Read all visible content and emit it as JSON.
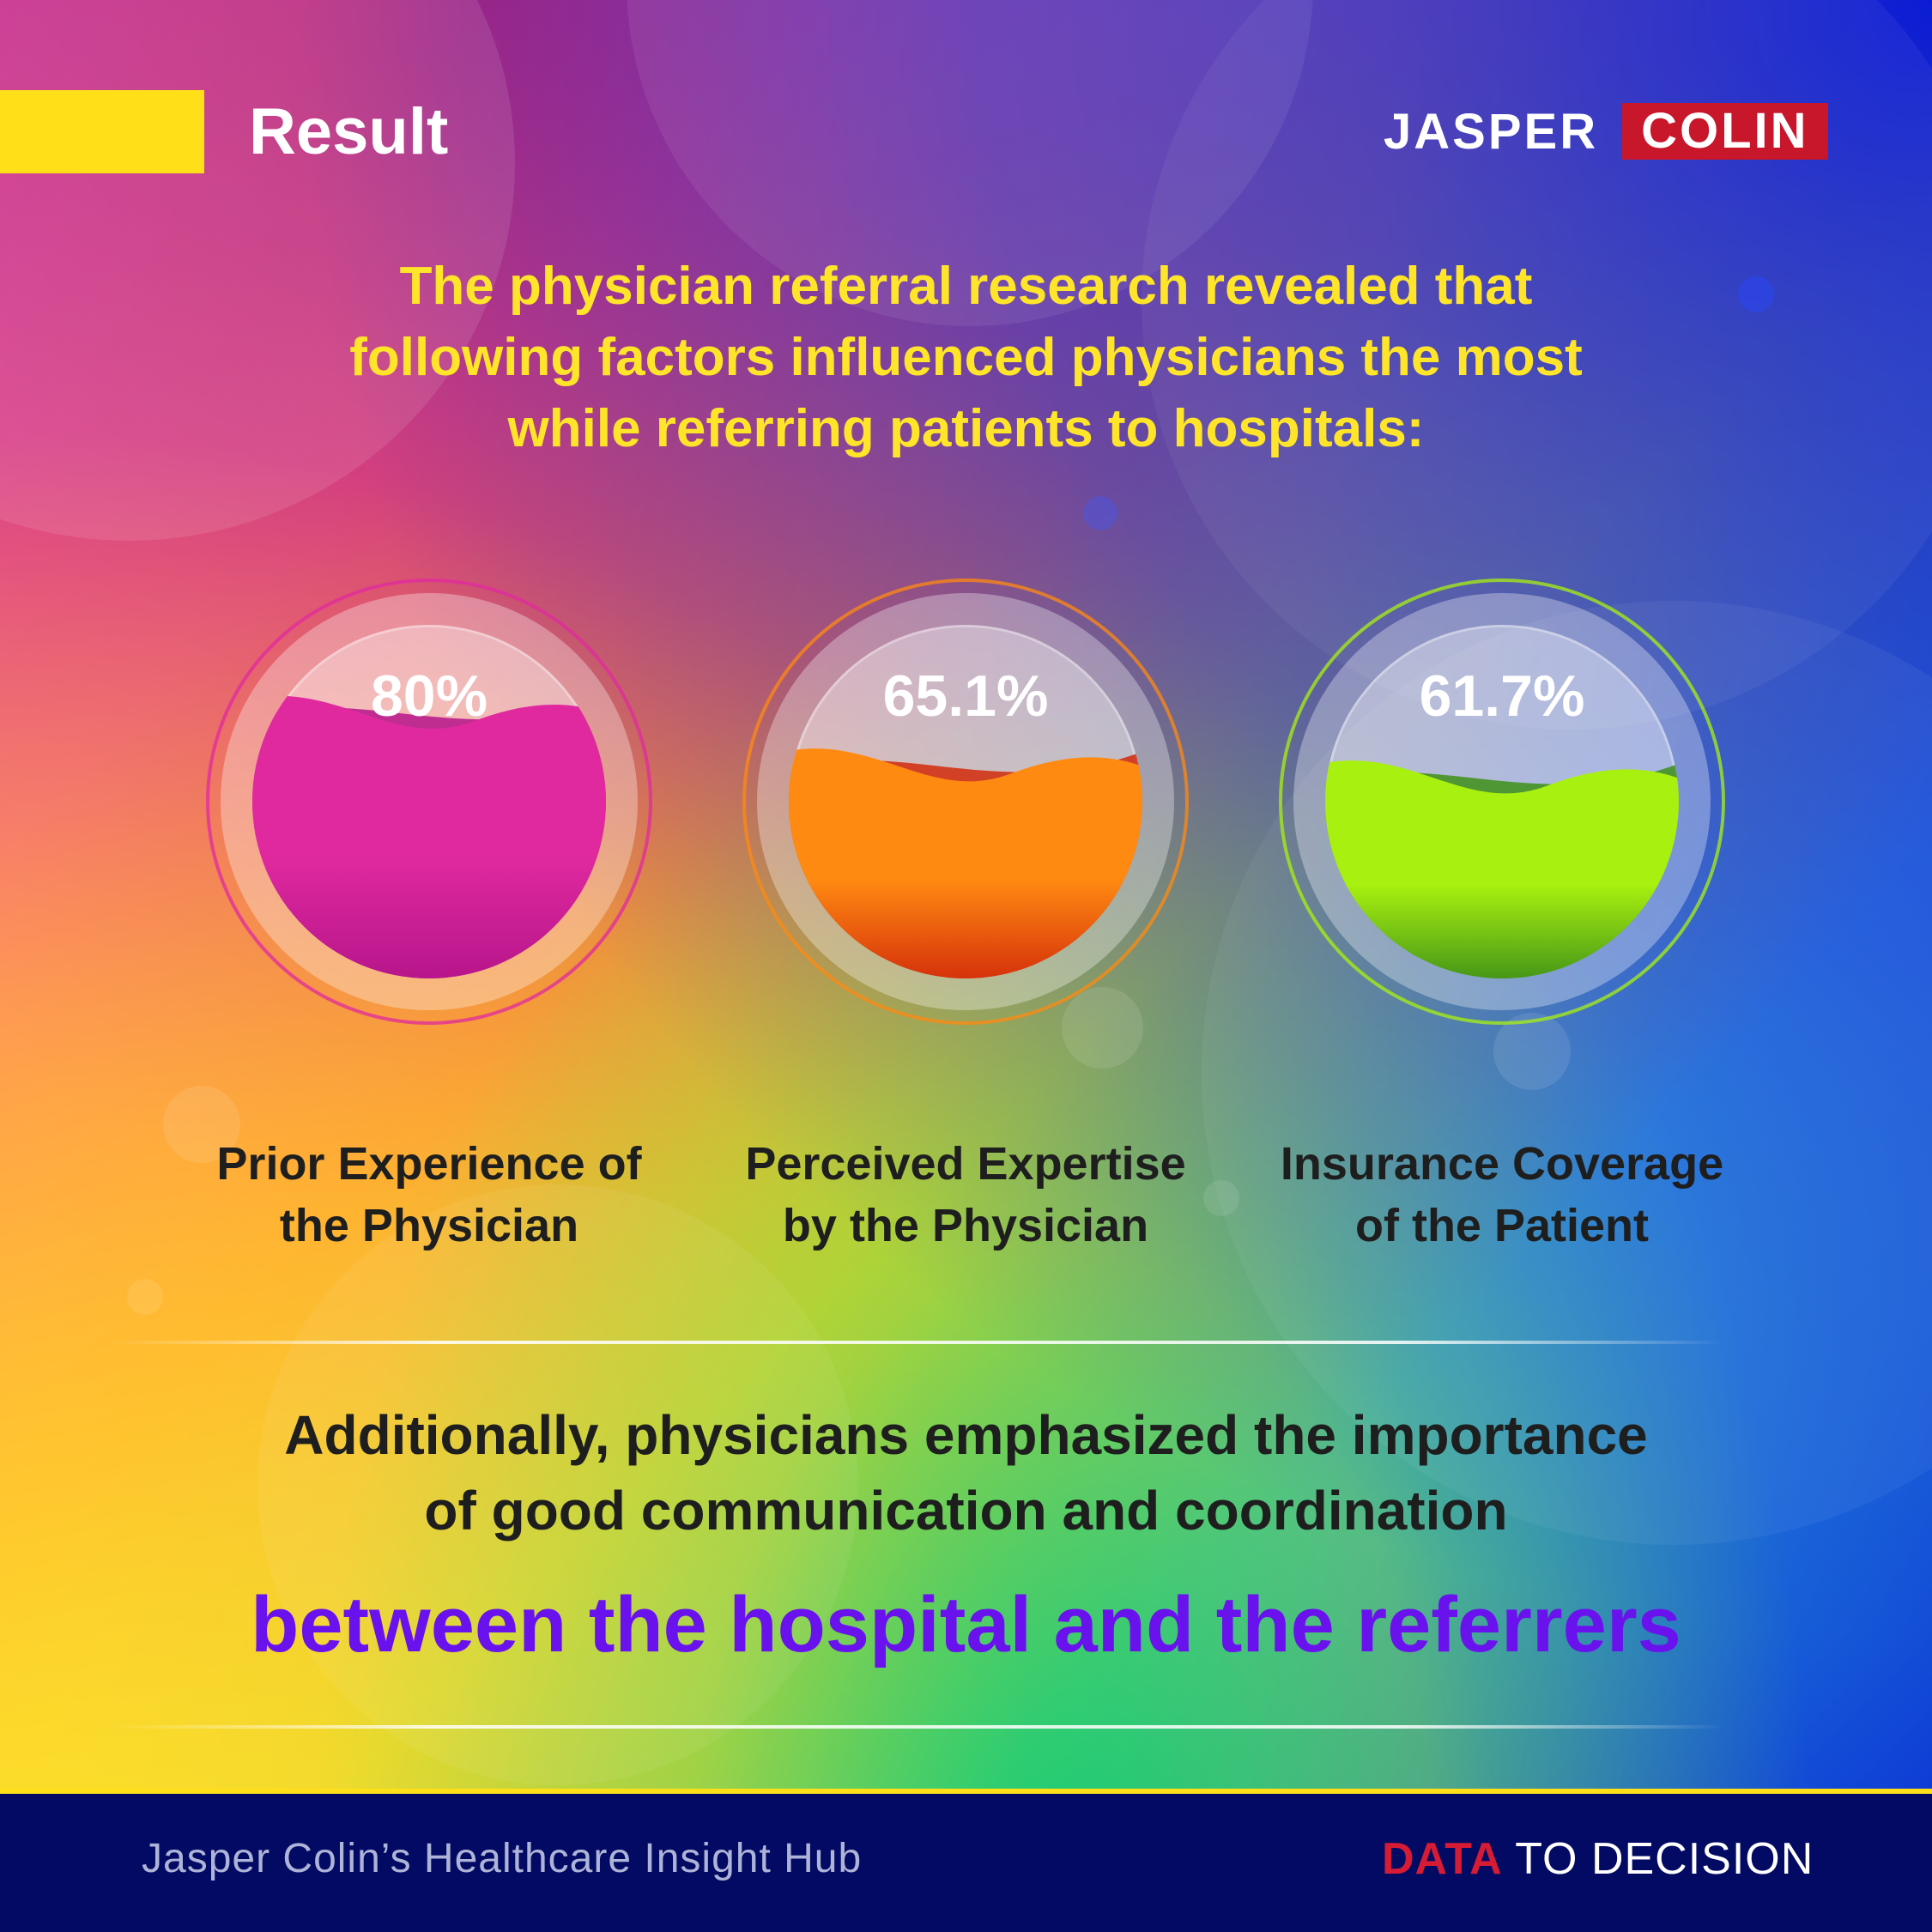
{
  "header": {
    "title": "Result",
    "logo_left": "JASPER",
    "logo_right": "COLIN"
  },
  "intro": {
    "line1": "The physician referral research revealed that",
    "line2": "following factors influenced physicians the most",
    "line3": "while referring patients to hospitals:"
  },
  "chart_data": {
    "type": "gauge",
    "unit": "%",
    "items": [
      {
        "label_line1": "Prior Experience of",
        "label_line2": "the Physician",
        "value": 80,
        "value_label": "80%",
        "color": "#e0299f",
        "dark_color": "#b5148a"
      },
      {
        "label_line1": "Perceived Expertise",
        "label_line2": "by the Physician",
        "value": 65.1,
        "value_label": "65.1%",
        "color": "#ff8a12",
        "dark_color": "#d22a0a"
      },
      {
        "label_line1": "Insurance Coverage",
        "label_line2": "of the Patient",
        "value": 61.7,
        "value_label": "61.7%",
        "color": "#a8f010",
        "dark_color": "#3e8f18"
      }
    ]
  },
  "additional": {
    "line1": "Additionally, physicians emphasized the importance",
    "line2": "of good communication and coordination",
    "highlight": "between the hospital and the referrers"
  },
  "footer": {
    "left": "Jasper Colin’s Healthcare Insight Hub",
    "right_accent": "DATA",
    "right_rest": "TO DECISION"
  },
  "colors": {
    "accent_yellow": "#ffe018",
    "brand_red": "#c8162b",
    "footer_navy": "#030a63",
    "highlight_purple": "#6a12ee"
  }
}
